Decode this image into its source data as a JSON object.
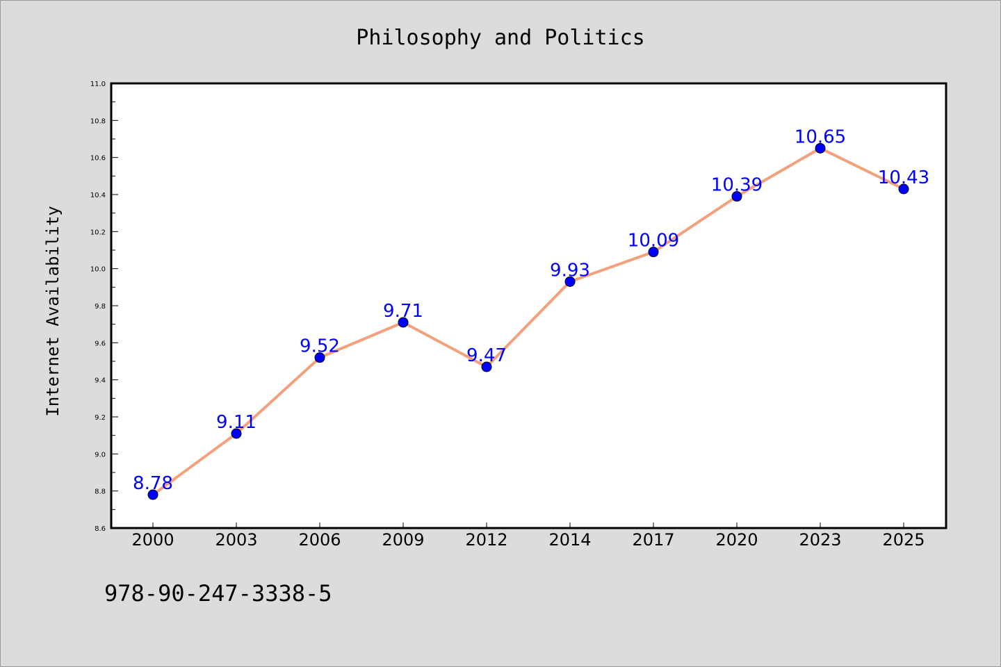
{
  "chart_data": {
    "type": "line",
    "title": "Philosophy and Politics",
    "xlabel": "",
    "ylabel": "Internet Availability",
    "categories": [
      "2000",
      "2003",
      "2006",
      "2009",
      "2012",
      "2014",
      "2017",
      "2020",
      "2023",
      "2025"
    ],
    "series": [
      {
        "values": [
          8.78,
          9.11,
          9.52,
          9.71,
          9.47,
          9.93,
          10.09,
          10.39,
          10.65,
          10.43
        ],
        "data_labels": [
          "8.78",
          "9.11",
          "9.52",
          "9.71",
          "9.47",
          "9.93",
          "10.09",
          "10.39",
          "10.65",
          "10.43"
        ],
        "line_color": "#f4a07c",
        "marker_color": "#0000ff"
      }
    ],
    "ylim": [
      8.6,
      11.0
    ],
    "yticks": [
      "8.6",
      "8.8",
      "9.0",
      "9.2",
      "9.4",
      "9.6",
      "9.8",
      "10.0",
      "10.2",
      "10.4",
      "10.6",
      "10.8",
      "11.0"
    ],
    "grid": false,
    "legend": "none",
    "annotation": "978-90-247-3338-5"
  },
  "colors": {
    "background": "#dcdcdc",
    "plot_background": "#ffffff",
    "line": "#f4a07c",
    "marker": "#0000ff",
    "data_label": "#0000ff"
  }
}
